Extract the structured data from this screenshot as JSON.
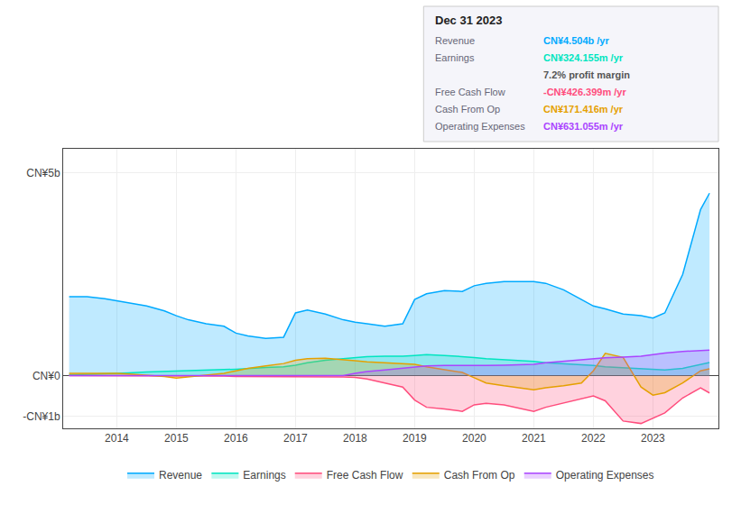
{
  "chart_data": {
    "type": "area",
    "title": "Dec 31 2023",
    "x": [
      2013.2,
      2013.5,
      2013.8,
      2014.0,
      2014.2,
      2014.5,
      2014.8,
      2015.0,
      2015.2,
      2015.5,
      2015.8,
      2016.0,
      2016.2,
      2016.5,
      2016.8,
      2017.0,
      2017.2,
      2017.5,
      2017.8,
      2018.0,
      2018.2,
      2018.5,
      2018.8,
      2019.0,
      2019.2,
      2019.5,
      2019.8,
      2020.0,
      2020.2,
      2020.5,
      2020.8,
      2021.0,
      2021.2,
      2021.5,
      2021.8,
      2022.0,
      2022.2,
      2022.5,
      2022.8,
      2023.0,
      2023.2,
      2023.5,
      2023.8,
      2023.95
    ],
    "series": [
      {
        "name": "Revenue",
        "color": "#00aaff",
        "values": [
          1950000000.0,
          1950000000.0,
          1900000000.0,
          1850000000.0,
          1800000000.0,
          1720000000.0,
          1600000000.0,
          1480000000.0,
          1380000000.0,
          1280000000.0,
          1220000000.0,
          1050000000.0,
          980000000.0,
          920000000.0,
          950000000.0,
          1550000000.0,
          1620000000.0,
          1520000000.0,
          1380000000.0,
          1320000000.0,
          1280000000.0,
          1220000000.0,
          1280000000.0,
          1880000000.0,
          2020000000.0,
          2100000000.0,
          2080000000.0,
          2220000000.0,
          2280000000.0,
          2320000000.0,
          2320000000.0,
          2320000000.0,
          2280000000.0,
          2120000000.0,
          1880000000.0,
          1720000000.0,
          1650000000.0,
          1520000000.0,
          1480000000.0,
          1420000000.0,
          1550000000.0,
          2500000000.0,
          4100000000.0,
          4504000000.0
        ]
      },
      {
        "name": "Earnings",
        "color": "#00e5c0",
        "values": [
          20000000.0,
          30000000.0,
          50000000.0,
          60000000.0,
          70000000.0,
          90000000.0,
          100000000.0,
          110000000.0,
          130000000.0,
          140000000.0,
          150000000.0,
          160000000.0,
          180000000.0,
          200000000.0,
          220000000.0,
          260000000.0,
          320000000.0,
          380000000.0,
          420000000.0,
          450000000.0,
          470000000.0,
          480000000.0,
          480000000.0,
          500000000.0,
          520000000.0,
          500000000.0,
          480000000.0,
          450000000.0,
          420000000.0,
          400000000.0,
          380000000.0,
          350000000.0,
          320000000.0,
          300000000.0,
          280000000.0,
          250000000.0,
          220000000.0,
          200000000.0,
          180000000.0,
          150000000.0,
          140000000.0,
          180000000.0,
          280000000.0,
          324000000.0
        ]
      },
      {
        "name": "Free Cash Flow",
        "color": "#ff4d7d",
        "values": [
          0.0,
          0.0,
          0.0,
          -5000000.0,
          -5000000.0,
          -8000000.0,
          -10000000.0,
          -10000000.0,
          -10000000.0,
          -10000000.0,
          -10000000.0,
          -20000000.0,
          -20000000.0,
          -20000000.0,
          -20000000.0,
          -20000000.0,
          -30000000.0,
          -30000000.0,
          -30000000.0,
          -40000000.0,
          -80000000.0,
          -180000000.0,
          -280000000.0,
          -600000000.0,
          -780000000.0,
          -820000000.0,
          -880000000.0,
          -720000000.0,
          -680000000.0,
          -720000000.0,
          -820000000.0,
          -880000000.0,
          -780000000.0,
          -680000000.0,
          -580000000.0,
          -500000000.0,
          -620000000.0,
          -1120000000.0,
          -1180000000.0,
          -1050000000.0,
          -920000000.0,
          -550000000.0,
          -300000000.0,
          -426000000.0
        ]
      },
      {
        "name": "Cash From Op",
        "color": "#e5a000",
        "values": [
          60000000.0,
          60000000.0,
          60000000.0,
          60000000.0,
          40000000.0,
          10000000.0,
          -20000000.0,
          -60000000.0,
          -30000000.0,
          10000000.0,
          60000000.0,
          120000000.0,
          180000000.0,
          240000000.0,
          300000000.0,
          380000000.0,
          420000000.0,
          430000000.0,
          400000000.0,
          370000000.0,
          340000000.0,
          320000000.0,
          300000000.0,
          280000000.0,
          220000000.0,
          150000000.0,
          80000000.0,
          -50000000.0,
          -180000000.0,
          -250000000.0,
          -320000000.0,
          -350000000.0,
          -300000000.0,
          -250000000.0,
          -180000000.0,
          120000000.0,
          550000000.0,
          450000000.0,
          -280000000.0,
          -480000000.0,
          -420000000.0,
          -180000000.0,
          120000000.0,
          171000000.0
        ]
      },
      {
        "name": "Operating Expenses",
        "color": "#aa44ff",
        "values": [
          0.0,
          0.0,
          0.0,
          0.0,
          0.0,
          0.0,
          0.0,
          0.0,
          0.0,
          0.0,
          0.0,
          0.0,
          0.0,
          0.0,
          0.0,
          0.0,
          0.0,
          0.0,
          0.0,
          60000000.0,
          100000000.0,
          140000000.0,
          180000000.0,
          220000000.0,
          240000000.0,
          250000000.0,
          250000000.0,
          240000000.0,
          250000000.0,
          260000000.0,
          270000000.0,
          280000000.0,
          320000000.0,
          360000000.0,
          400000000.0,
          420000000.0,
          440000000.0,
          460000000.0,
          480000000.0,
          520000000.0,
          560000000.0,
          600000000.0,
          630000000.0,
          631000000.0
        ]
      }
    ],
    "xlim": [
      2013.1,
      2024.1
    ],
    "xticks": [
      2014,
      2015,
      2016,
      2017,
      2018,
      2019,
      2020,
      2021,
      2022,
      2023
    ],
    "ylim": [
      -1300000000.0,
      5600000000.0
    ],
    "yticks": [
      {
        "value": -1000000000,
        "label": "-CN¥1b"
      },
      {
        "value": 0,
        "label": "CN¥0"
      },
      {
        "value": 5000000000,
        "label": "CN¥5b"
      }
    ],
    "grid": true,
    "legend": "bottom",
    "annotations": [
      {
        "label": "Revenue",
        "text": "CN¥4.504b /yr",
        "color": "#00aaff"
      },
      {
        "label": "Earnings",
        "text": "CN¥324.155m /yr",
        "color": "#00e5c0"
      },
      {
        "text": "7.2% profit margin",
        "color": "#555555"
      },
      {
        "label": "Free Cash Flow",
        "text": "-CN¥426.399m /yr",
        "color": "#ff4d7d"
      },
      {
        "label": "Cash From Op",
        "text": "CN¥171.416m /yr",
        "color": "#e5a000"
      },
      {
        "label": "Operating Expenses",
        "text": "CN¥631.055m /yr",
        "color": "#aa44ff"
      }
    ]
  }
}
